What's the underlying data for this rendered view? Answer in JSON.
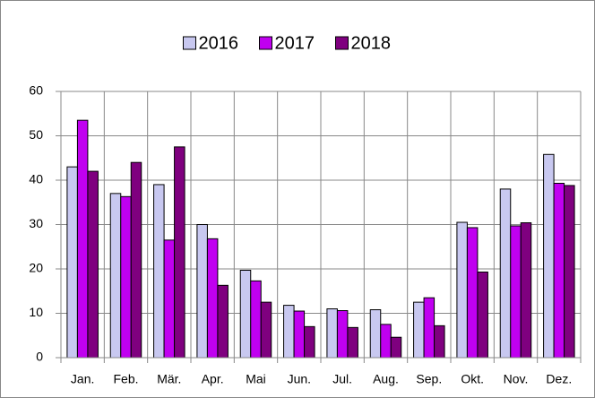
{
  "chart_data": {
    "type": "bar",
    "categories": [
      "Jan.",
      "Feb.",
      "Mär.",
      "Apr.",
      "Mai",
      "Jun.",
      "Jul.",
      "Aug.",
      "Sep.",
      "Okt.",
      "Nov.",
      "Dez."
    ],
    "series": [
      {
        "name": "2016",
        "color": "#c8c8f0",
        "values": [
          43,
          37,
          39,
          30,
          19.7,
          11.8,
          11,
          10.8,
          12.5,
          30.5,
          38,
          45.8
        ]
      },
      {
        "name": "2017",
        "color": "#c000f0",
        "values": [
          53.5,
          36.3,
          26.5,
          26.8,
          17.3,
          10.5,
          10.6,
          7.5,
          13.5,
          29.3,
          29.7,
          39.3
        ]
      },
      {
        "name": "2018",
        "color": "#7f007f",
        "values": [
          42,
          44,
          47.5,
          16.3,
          12.5,
          7,
          6.8,
          4.6,
          7.2,
          19.3,
          30.4,
          38.8
        ]
      }
    ],
    "ylim": [
      0,
      60
    ],
    "yticks": [
      0,
      10,
      20,
      30,
      40,
      50,
      60
    ],
    "grid": true,
    "legend": "top"
  }
}
